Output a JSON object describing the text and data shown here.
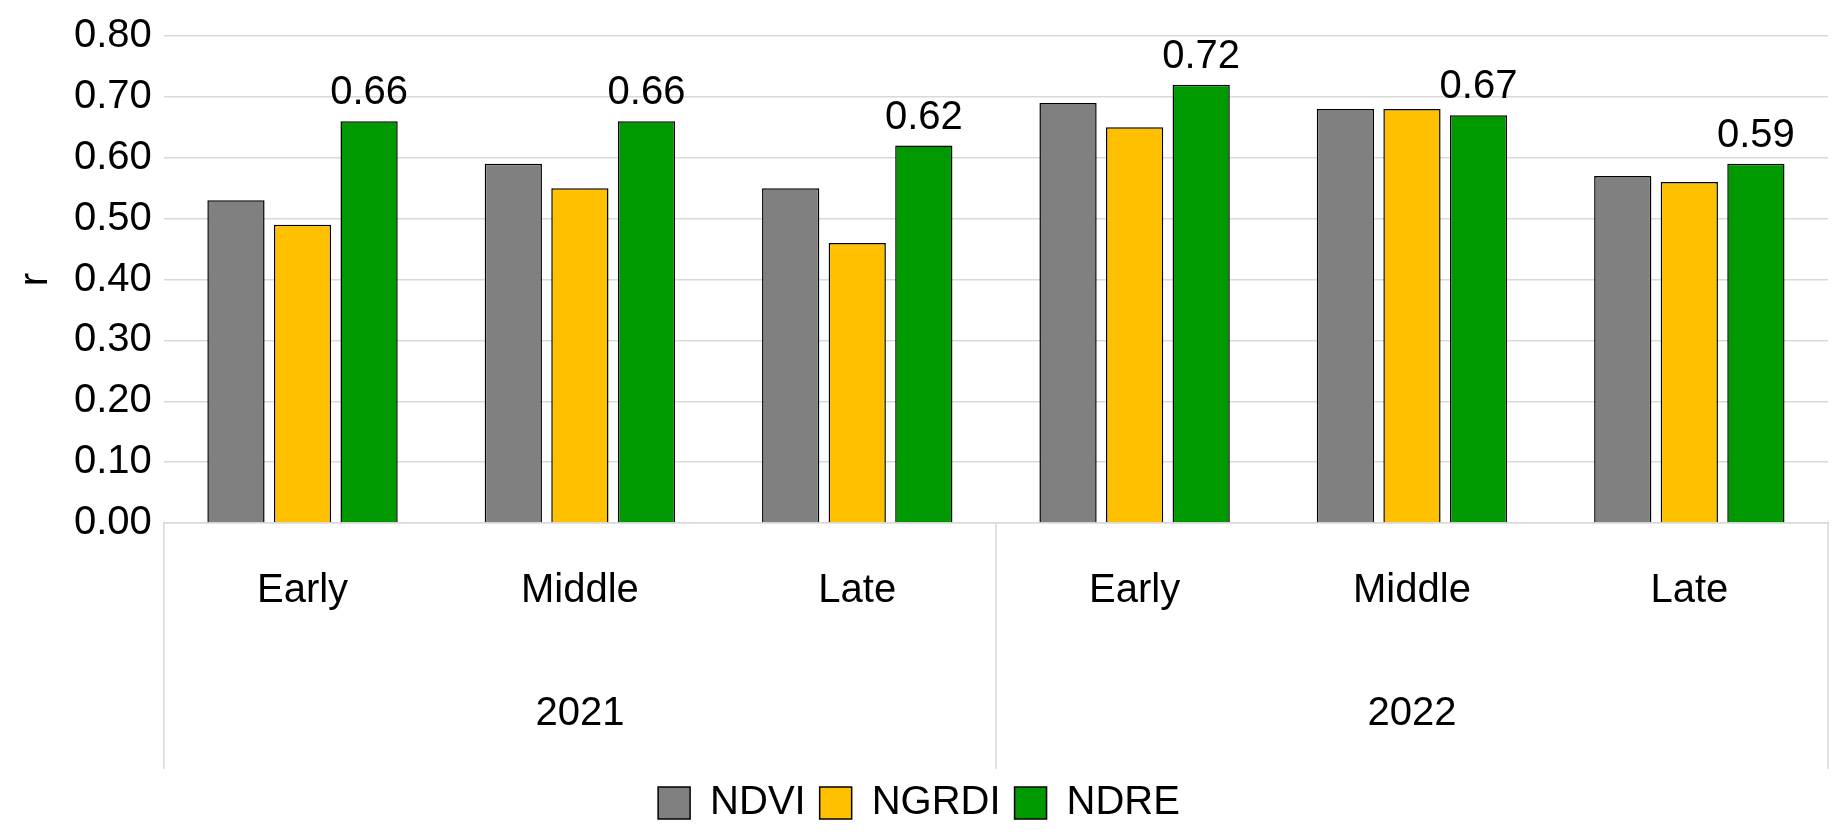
{
  "chart_data": {
    "type": "bar",
    "ylabel": "r",
    "categories": [
      "Early",
      "Middle",
      "Late",
      "Early",
      "Middle",
      "Late"
    ],
    "annotations": [
      "2021",
      "2022"
    ],
    "series": [
      {
        "name": "NDVI",
        "color": "#808080",
        "values": [
          0.53,
          0.59,
          0.55,
          0.69,
          0.68,
          0.57
        ]
      },
      {
        "name": "NGRDI",
        "color": "#ffc000",
        "values": [
          0.49,
          0.55,
          0.46,
          0.65,
          0.68,
          0.56
        ]
      },
      {
        "name": "NDRE",
        "color": "#009900",
        "values": [
          0.66,
          0.66,
          0.62,
          0.72,
          0.67,
          0.59
        ],
        "value_labels": [
          "0.66",
          "0.66",
          "0.62",
          "0.72",
          "0.67",
          "0.59"
        ]
      }
    ],
    "ylim": [
      0,
      0.8
    ],
    "yticks": [
      {
        "value": 0,
        "label": "0.00"
      },
      {
        "value": 0.1,
        "label": "0.10"
      },
      {
        "value": 0.2,
        "label": "0.20"
      },
      {
        "value": 0.3,
        "label": "0.30"
      },
      {
        "value": 0.4,
        "label": "0.40"
      },
      {
        "value": 0.5,
        "label": "0.50"
      },
      {
        "value": 0.6,
        "label": "0.60"
      },
      {
        "value": 0.7,
        "label": "0.70"
      },
      {
        "value": 0.8,
        "label": "0.80"
      }
    ],
    "grid": "y",
    "legend": "bottom"
  }
}
